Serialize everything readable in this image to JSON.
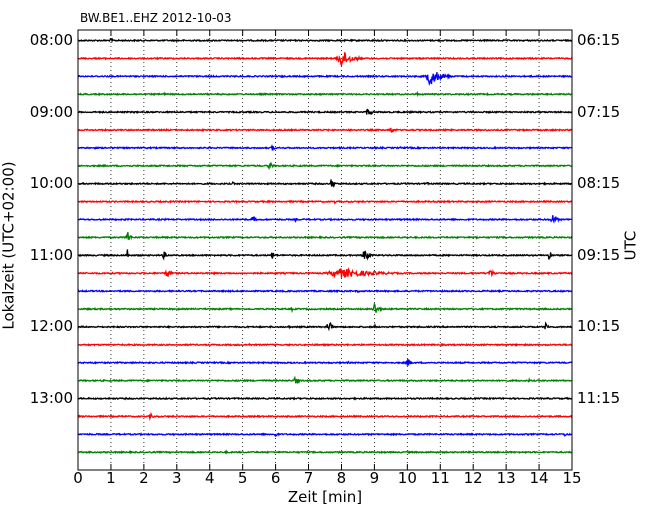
{
  "chart_data": {
    "type": "line",
    "title": "BW.BE1..EHZ 2012-10-03",
    "xlabel": "Zeit  [min]",
    "ylabel_left": "Lokalzeit (UTC+02:00)",
    "ylabel_right": "UTC",
    "xlim": [
      0,
      15
    ],
    "x_ticks": [
      "0",
      "1",
      "2",
      "3",
      "4",
      "5",
      "6",
      "7",
      "8",
      "9",
      "10",
      "11",
      "12",
      "13",
      "14",
      "15"
    ],
    "left_ticks": [
      "08:00",
      "09:00",
      "10:00",
      "11:00",
      "12:00",
      "13:00"
    ],
    "right_ticks": [
      "06:15",
      "07:15",
      "08:15",
      "09:15",
      "10:15",
      "11:15"
    ],
    "grid": true,
    "trace_colors": [
      "#000000",
      "#ff0000",
      "#0000ff",
      "#008000"
    ],
    "traces": [
      {
        "events": [
          [
            1.0,
            0.3,
            0.06
          ]
        ]
      },
      {
        "events": [
          [
            8.0,
            1.0,
            0.28
          ],
          [
            15.0,
            0.3,
            0.05
          ]
        ]
      },
      {
        "events": [
          [
            10.7,
            1.0,
            0.28
          ],
          [
            6.2,
            0.25,
            0.05
          ]
        ]
      },
      {
        "events": [
          [
            2.6,
            0.2,
            0.05
          ],
          [
            10.3,
            0.2,
            0.05
          ]
        ]
      },
      {
        "events": [
          [
            8.8,
            0.5,
            0.12
          ]
        ]
      },
      {
        "events": [
          [
            9.5,
            0.45,
            0.1
          ]
        ]
      },
      {
        "events": [
          [
            5.9,
            0.45,
            0.05
          ],
          [
            9.8,
            0.15,
            0.04
          ]
        ]
      },
      {
        "events": [
          [
            5.8,
            0.45,
            0.1
          ],
          [
            9.0,
            0.35,
            0.03
          ]
        ]
      },
      {
        "events": [
          [
            7.7,
            1.0,
            0.05
          ],
          [
            4.7,
            0.2,
            0.05
          ],
          [
            10.6,
            0.2,
            0.05
          ]
        ]
      },
      {
        "events": [
          [
            7.8,
            0.2,
            0.05
          ]
        ]
      },
      {
        "events": [
          [
            5.3,
            0.4,
            0.08
          ],
          [
            6.6,
            0.2,
            0.05
          ],
          [
            14.4,
            0.6,
            0.12
          ]
        ]
      },
      {
        "events": [
          [
            1.5,
            1.8,
            0.03
          ],
          [
            1.5,
            0.5,
            0.1
          ],
          [
            12.1,
            0.2,
            0.05
          ]
        ]
      },
      {
        "events": [
          [
            1.5,
            1.4,
            0.02
          ],
          [
            2.6,
            0.5,
            0.08
          ],
          [
            5.9,
            0.5,
            0.08
          ],
          [
            8.7,
            0.9,
            0.12
          ],
          [
            14.3,
            1.0,
            0.05
          ]
        ]
      },
      {
        "events": [
          [
            2.7,
            0.6,
            0.1
          ],
          [
            8.0,
            0.55,
            0.9
          ],
          [
            12.5,
            0.45,
            0.15
          ]
        ]
      },
      {
        "events": [
          [
            8.5,
            0.15,
            0.05
          ]
        ]
      },
      {
        "events": [
          [
            9.0,
            0.9,
            0.1
          ],
          [
            6.5,
            0.2,
            0.05
          ]
        ]
      },
      {
        "events": [
          [
            7.6,
            1.0,
            0.08
          ],
          [
            9.0,
            0.5,
            0.03
          ],
          [
            14.2,
            0.45,
            0.08
          ],
          [
            6.4,
            0.15,
            0.04
          ]
        ]
      },
      {
        "events": [
          [
            5.2,
            0.15,
            0.05
          ]
        ]
      },
      {
        "events": [
          [
            10.0,
            0.55,
            0.1
          ],
          [
            8.2,
            0.15,
            0.05
          ]
        ]
      },
      {
        "events": [
          [
            6.6,
            0.6,
            0.08
          ],
          [
            13.7,
            0.2,
            0.05
          ]
        ]
      },
      {
        "events": [
          [
            4.0,
            0.15,
            0.05
          ],
          [
            10.5,
            0.15,
            0.05
          ]
        ]
      },
      {
        "events": [
          [
            2.2,
            0.35,
            0.08
          ],
          [
            3.4,
            0.15,
            0.05
          ]
        ]
      },
      {
        "events": [
          [
            6.0,
            0.4,
            0.06
          ],
          [
            14.8,
            0.35,
            0.06
          ]
        ]
      },
      {
        "events": [
          [
            0.3,
            0.35,
            0.05
          ],
          [
            4.5,
            0.15,
            0.05
          ]
        ]
      }
    ]
  }
}
